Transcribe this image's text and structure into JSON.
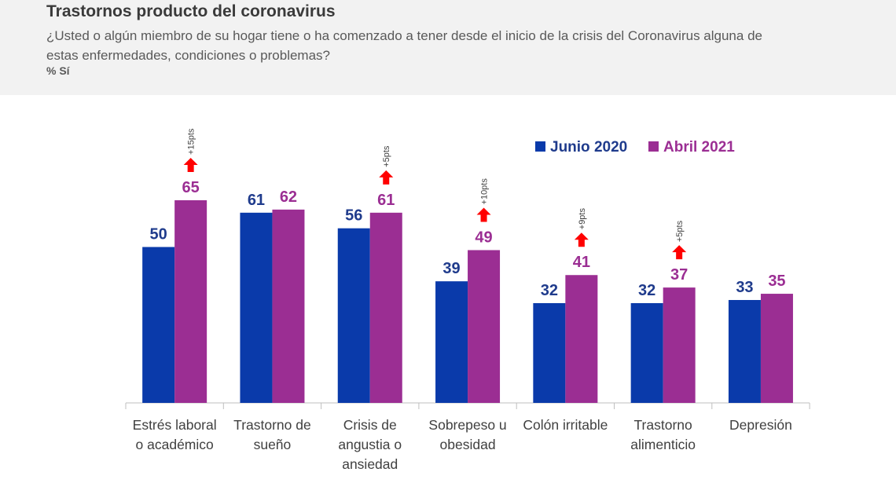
{
  "header": {
    "title": "Trastornos producto del coronavirus",
    "subtitle": "¿Usted o algún miembro de su hogar tiene o ha comenzado a tener desde el inicio de la crisis del Coronavirus alguna de estas enfermedades, condiciones o problemas?",
    "unit": "% Sí"
  },
  "chart_data": {
    "type": "bar",
    "title": "Trastornos producto del coronavirus",
    "xlabel": "",
    "ylabel": "",
    "ylim": [
      0,
      100
    ],
    "grid": false,
    "legend_position": "top-right",
    "categories": [
      [
        "Estrés laboral",
        "o académico"
      ],
      [
        "Trastorno de",
        "sueño"
      ],
      [
        "Crisis de",
        "angustia o",
        "ansiedad"
      ],
      [
        "Sobrepeso u",
        "obesidad"
      ],
      [
        "Colón irritable"
      ],
      [
        "Trastorno",
        "alimenticio"
      ],
      [
        "Depresión"
      ]
    ],
    "series": [
      {
        "name": "Junio 2020",
        "color": "#0a3aaa",
        "label_color": "#1f3b8c",
        "values": [
          50,
          61,
          56,
          39,
          32,
          32,
          33
        ]
      },
      {
        "name": "Abril 2021",
        "color": "#9b2e93",
        "label_color": "#9b2e93",
        "values": [
          65,
          62,
          61,
          49,
          41,
          37,
          35
        ]
      }
    ],
    "changes": [
      "+15pts",
      null,
      "+5pts",
      "+10pts",
      "+9pts",
      "+5pts",
      null
    ],
    "change_arrow_color": "#ff0000"
  }
}
